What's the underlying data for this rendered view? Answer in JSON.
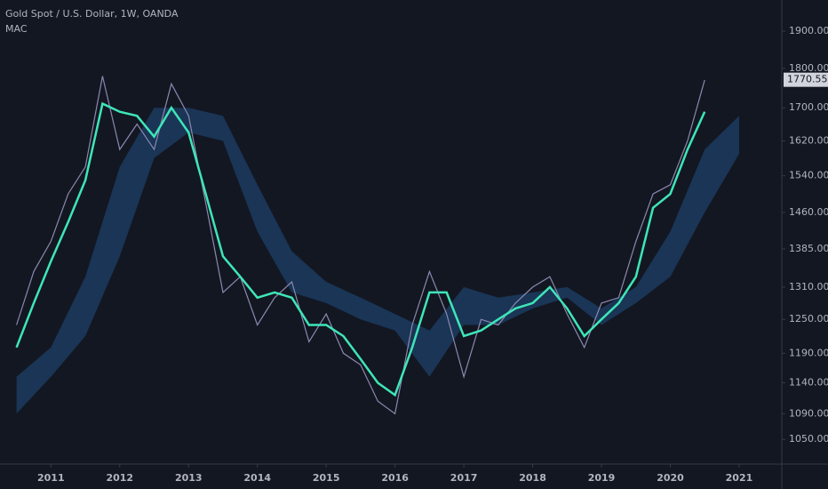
{
  "chart_data": {
    "type": "line",
    "title": "Gold Spot / U.S. Dollar, 1W, OANDA",
    "indicator": "MAC",
    "log_scale": true,
    "xlim": [
      2010.26,
      2021.62
    ],
    "xticks": [
      2011,
      2012,
      2013,
      2014,
      2015,
      2016,
      2017,
      2018,
      2019,
      2020,
      2021
    ],
    "ylim": [
      1013,
      1988
    ],
    "yticks": [
      {
        "value": 1050,
        "label": "1050.000"
      },
      {
        "value": 1090,
        "label": "1090.000"
      },
      {
        "value": 1140,
        "label": "1140.000"
      },
      {
        "value": 1190,
        "label": "1190.000"
      },
      {
        "value": 1250,
        "label": "1250.000"
      },
      {
        "value": 1310,
        "label": "1310.000"
      },
      {
        "value": 1385,
        "label": "1385.000"
      },
      {
        "value": 1460,
        "label": "1460.000"
      },
      {
        "value": 1540,
        "label": "1540.000"
      },
      {
        "value": 1620,
        "label": "1620.000"
      },
      {
        "value": 1700,
        "label": "1700.000"
      },
      {
        "value": 1800,
        "label": "1800.000"
      },
      {
        "value": 1900,
        "label": "1900.000"
      }
    ],
    "last_price": 1770.559,
    "x": [
      2010.5,
      2010.75,
      2011.0,
      2011.25,
      2011.5,
      2011.75,
      2012.0,
      2012.25,
      2012.5,
      2012.75,
      2013.0,
      2013.25,
      2013.5,
      2013.75,
      2014.0,
      2014.25,
      2014.5,
      2014.75,
      2015.0,
      2015.25,
      2015.5,
      2015.75,
      2016.0,
      2016.25,
      2016.5,
      2016.75,
      2017.0,
      2017.25,
      2017.5,
      2017.75,
      2018.0,
      2018.25,
      2018.5,
      2018.75,
      2019.0,
      2019.25,
      2019.5,
      2019.75,
      2020.0,
      2020.25,
      2020.5
    ],
    "series": [
      {
        "color": "#8c88b0",
        "values": [
          1240,
          1340,
          1400,
          1500,
          1560,
          1780,
          1600,
          1660,
          1600,
          1760,
          1680,
          1480,
          1300,
          1330,
          1240,
          1290,
          1320,
          1210,
          1260,
          1190,
          1170,
          1110,
          1090,
          1240,
          1340,
          1260,
          1150,
          1250,
          1240,
          1280,
          1310,
          1330,
          1260,
          1200,
          1280,
          1290,
          1400,
          1500,
          1520,
          1620,
          1770
        ]
      },
      {
        "color": "#3ee6b8",
        "values": [
          1200,
          1280,
          1360,
          1440,
          1530,
          1710,
          1690,
          1680,
          1630,
          1700,
          1640,
          1500,
          1370,
          1330,
          1290,
          1300,
          1290,
          1240,
          1240,
          1220,
          1180,
          1140,
          1120,
          1200,
          1300,
          1300,
          1220,
          1230,
          1250,
          1270,
          1280,
          1310,
          1270,
          1220,
          1250,
          1280,
          1330,
          1470,
          1500,
          1600,
          1690
        ]
      }
    ],
    "cloud": {
      "color": "#1f4a78",
      "x": [
        2010.5,
        2011.0,
        2011.5,
        2012.0,
        2012.5,
        2013.0,
        2013.5,
        2014.0,
        2014.5,
        2015.0,
        2015.5,
        2016.0,
        2016.5,
        2017.0,
        2017.5,
        2018.0,
        2018.5,
        2019.0,
        2019.5,
        2020.0,
        2020.5,
        2021.0
      ],
      "lower": [
        1090,
        1150,
        1220,
        1370,
        1580,
        1640,
        1620,
        1420,
        1300,
        1280,
        1250,
        1230,
        1150,
        1240,
        1240,
        1270,
        1290,
        1240,
        1280,
        1330,
        1460,
        1590
      ],
      "upper": [
        1150,
        1200,
        1330,
        1560,
        1700,
        1700,
        1680,
        1520,
        1380,
        1320,
        1290,
        1260,
        1230,
        1310,
        1290,
        1300,
        1310,
        1270,
        1310,
        1420,
        1600,
        1680
      ]
    }
  }
}
